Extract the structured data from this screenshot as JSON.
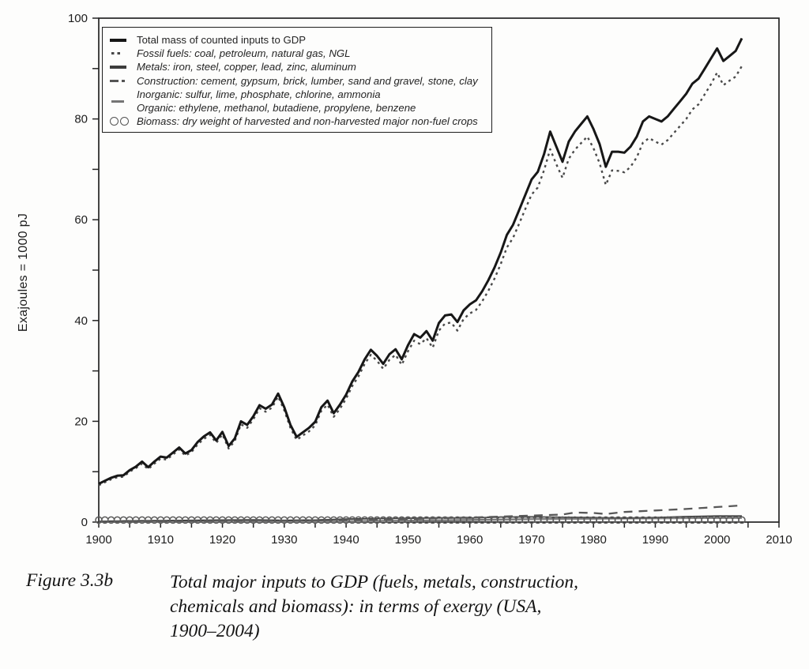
{
  "figure": {
    "caption_label": "Figure 3.3b",
    "caption_lines": [
      "Total major inputs to GDP (fuels, metals, construction,",
      "chemicals and biomass): in terms of exergy (USA,",
      "1900–2004)"
    ]
  },
  "legend": {
    "items": [
      {
        "label": "Total mass of counted inputs to GDP",
        "style": "total"
      },
      {
        "label": "Fossil fuels: coal, petroleum, natural gas, NGL",
        "style": "fossil"
      },
      {
        "label": "Metals: iron, steel, copper, lead, zinc, aluminum",
        "style": "metals"
      },
      {
        "label": "Construction: cement, gypsum, brick, lumber, sand and gravel, stone, clay",
        "style": "construction"
      },
      {
        "label": "Inorganic: sulfur, lime, phosphate, chlorine, ammonia",
        "style": "inorganic"
      },
      {
        "label": "Organic: ethylene, methanol, butadiene, propylene, benzene",
        "style": "organic"
      },
      {
        "label": "Biomass: dry weight of harvested and non-harvested major non-fuel crops",
        "style": "biomass"
      }
    ]
  },
  "chart_data": {
    "type": "line",
    "title": "",
    "xlabel": "",
    "ylabel": "Exajoules = 1000 pJ",
    "xlim": [
      1900,
      2010
    ],
    "ylim": [
      0,
      100
    ],
    "x_tick_labels": [
      1900,
      1910,
      1920,
      1930,
      1940,
      1950,
      1960,
      1970,
      1980,
      1990,
      2000,
      2010
    ],
    "x_minor_step": 5,
    "y_tick_labels": [
      0,
      20,
      40,
      60,
      80,
      100
    ],
    "y_minor_step": 10,
    "grid": false,
    "legend_position": "top-left",
    "series": [
      {
        "id": "inorganic",
        "name": "Inorganic: sulfur, lime, phosphate, chlorine, ammonia",
        "years": [
          1900,
          1920,
          1940,
          1950,
          1960,
          1970,
          1980,
          1990,
          2000,
          2004
        ],
        "values": [
          0.05,
          0.1,
          0.2,
          0.3,
          0.45,
          0.6,
          0.7,
          0.75,
          0.8,
          0.8
        ]
      },
      {
        "id": "organic",
        "name": "Organic: ethylene, methanol, butadiene, propylene, benzene",
        "years": [
          1900,
          1940,
          1950,
          1960,
          1970,
          1980,
          1990,
          2000,
          2004
        ],
        "values": [
          0.0,
          0.05,
          0.15,
          0.3,
          0.5,
          0.6,
          0.7,
          0.8,
          0.85
        ]
      },
      {
        "id": "metals",
        "name": "Metals: iron, steel, copper, lead, zinc, aluminum",
        "years": [
          1900,
          1905,
          1910,
          1915,
          1920,
          1925,
          1930,
          1935,
          1940,
          1945,
          1950,
          1955,
          1960,
          1965,
          1970,
          1975,
          1980,
          1985,
          1990,
          1995,
          2000,
          2004
        ],
        "values": [
          0.15,
          0.25,
          0.3,
          0.35,
          0.4,
          0.45,
          0.35,
          0.4,
          0.6,
          0.7,
          0.75,
          0.85,
          0.8,
          1.0,
          1.05,
          0.95,
          0.9,
          0.8,
          0.9,
          1.1,
          1.2,
          1.2
        ]
      },
      {
        "id": "construction",
        "name": "Construction: cement, gypsum, brick, lumber, sand and gravel, stone, clay",
        "years": [
          1900,
          1910,
          1920,
          1930,
          1940,
          1950,
          1955,
          1960,
          1965,
          1970,
          1975,
          1977,
          1980,
          1982,
          1985,
          1990,
          1995,
          2000,
          2004
        ],
        "values": [
          0.1,
          0.15,
          0.25,
          0.3,
          0.4,
          0.6,
          0.8,
          0.9,
          1.1,
          1.3,
          1.5,
          1.9,
          1.8,
          1.6,
          2.0,
          2.3,
          2.6,
          3.0,
          3.3
        ]
      },
      {
        "id": "biomass",
        "name": "Biomass: dry weight of harvested and non-harvested major non-fuel crops",
        "marker": "circle",
        "years": [
          1900,
          2004
        ],
        "values": [
          0.4,
          0.4
        ]
      },
      {
        "id": "fossil",
        "name": "Fossil fuels: coal, petroleum, natural gas, NGL",
        "year_start": 1900,
        "values": [
          7.3,
          7.9,
          8.5,
          8.9,
          9.0,
          10.0,
          10.7,
          11.6,
          10.5,
          11.6,
          12.6,
          12.4,
          13.4,
          14.4,
          13.2,
          13.9,
          15.4,
          16.5,
          17.3,
          15.7,
          17.4,
          14.6,
          16.1,
          19.4,
          18.7,
          20.4,
          22.6,
          21.9,
          22.7,
          24.9,
          22.2,
          18.7,
          16.3,
          17.2,
          18.0,
          19.2,
          22.1,
          23.3,
          20.9,
          22.5,
          24.5,
          27.0,
          28.9,
          31.4,
          33.2,
          32.0,
          30.4,
          32.2,
          33.2,
          31.2,
          33.9,
          36.0,
          35.3,
          36.5,
          34.6,
          38.0,
          39.4,
          39.6,
          38.0,
          40.3,
          41.4,
          42.1,
          43.8,
          45.9,
          48.3,
          51.2,
          54.5,
          56.4,
          59.3,
          62.2,
          65.0,
          66.4,
          69.8,
          74.0,
          71.0,
          68.3,
          72.1,
          73.9,
          75.2,
          76.5,
          74.2,
          71.2,
          66.9,
          69.8,
          69.7,
          69.4,
          70.5,
          72.4,
          75.3,
          76.2,
          75.5,
          74.9,
          75.8,
          77.2,
          78.6,
          80.0,
          81.9,
          82.9,
          84.9,
          86.9,
          89.2,
          86.7,
          87.6,
          88.4,
          90.5
        ]
      },
      {
        "id": "total",
        "name": "Total mass of counted inputs to GDP",
        "year_start": 1900,
        "values": [
          7.6,
          8.2,
          8.8,
          9.2,
          9.3,
          10.3,
          11.0,
          12.0,
          10.9,
          12.0,
          13.0,
          12.8,
          13.8,
          14.8,
          13.6,
          14.3,
          15.9,
          17.0,
          17.8,
          16.2,
          17.9,
          15.1,
          16.6,
          20.0,
          19.3,
          21.0,
          23.2,
          22.5,
          23.3,
          25.5,
          22.8,
          19.3,
          16.9,
          17.8,
          18.7,
          19.9,
          22.8,
          24.1,
          21.6,
          23.3,
          25.3,
          27.9,
          29.8,
          32.3,
          34.2,
          33.0,
          31.4,
          33.3,
          34.3,
          32.3,
          35.1,
          37.3,
          36.6,
          37.9,
          36.0,
          39.5,
          41.0,
          41.2,
          39.7,
          42.0,
          43.2,
          44.0,
          45.8,
          48.0,
          50.5,
          53.5,
          57.0,
          59.0,
          62.0,
          65.0,
          68.0,
          69.5,
          73.0,
          77.5,
          74.5,
          71.5,
          75.5,
          77.5,
          79.0,
          80.5,
          78.0,
          75.0,
          70.5,
          73.5,
          73.5,
          73.3,
          74.5,
          76.5,
          79.5,
          80.5,
          80.0,
          79.5,
          80.5,
          82.0,
          83.5,
          85.0,
          87.0,
          88.0,
          90.0,
          92.0,
          94.0,
          91.5,
          92.5,
          93.5,
          96.0
        ]
      }
    ]
  }
}
